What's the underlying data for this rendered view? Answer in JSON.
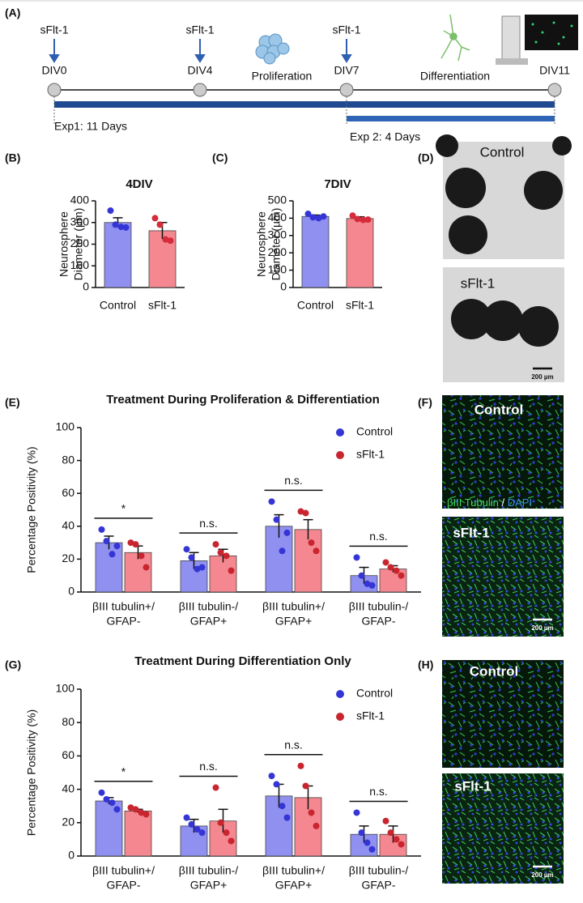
{
  "panels": [
    "(A)",
    "(B)",
    "(C)",
    "(D)",
    "(E)",
    "(F)",
    "(G)",
    "(H)"
  ],
  "timeline": {
    "treatments": [
      "sFlt-1",
      "sFlt-1",
      "sFlt-1"
    ],
    "days": [
      "DIV0",
      "DIV4",
      "DIV7",
      "DIV11"
    ],
    "phases": [
      "Proliferation",
      "Differentiation"
    ],
    "experiments": [
      "Exp1: 11 Days",
      "Exp 2: 4 Days"
    ]
  },
  "images": {
    "neurospheres": {
      "labels": [
        "Control",
        "sFlt-1"
      ],
      "scale": "200 µm"
    },
    "proliferation_differentiation": {
      "labels": [
        "Control",
        "sFlt-1"
      ],
      "stain": [
        "βIII Tubulin",
        "/",
        "DAPI"
      ],
      "scale": "200 µm"
    },
    "differentiation": {
      "labels": [
        "Control",
        "sFlt-1"
      ],
      "scale": "200 µm"
    }
  },
  "chart_data": [
    {
      "type": "bar",
      "title": "4DIV",
      "ylabel": [
        "Neurosphere",
        "Diameter (µm)"
      ],
      "categories": [
        "Control",
        "sFlt-1"
      ],
      "values": [
        300,
        262
      ],
      "errors": [
        22,
        38
      ],
      "points": [
        [
          355,
          290,
          280,
          277
        ],
        [
          320,
          290,
          222,
          216
        ]
      ],
      "colors": [
        "#8f90f0",
        "#f4878f"
      ],
      "point_colors": [
        "#3535d6",
        "#d42c3a"
      ],
      "ylim": [
        0,
        400
      ],
      "yticks": [
        0,
        100,
        200,
        300,
        400
      ]
    },
    {
      "type": "bar",
      "title": "7DIV",
      "ylabel": [
        "Neurosphere",
        "Diameter (µm)"
      ],
      "categories": [
        "Control",
        "sFlt-1"
      ],
      "values": [
        410,
        398
      ],
      "errors": [
        8,
        10
      ],
      "points": [
        [
          425,
          405,
          400,
          410
        ],
        [
          415,
          395,
          390,
          392
        ]
      ],
      "colors": [
        "#8f90f0",
        "#f4878f"
      ],
      "point_colors": [
        "#3535d6",
        "#d42c3a"
      ],
      "ylim": [
        0,
        500
      ],
      "yticks": [
        0,
        100,
        200,
        300,
        400,
        500
      ]
    },
    {
      "type": "bar",
      "title": "Treatment During Proliferation & Differentiation",
      "ylabel": [
        "Percentage Positivity (%)"
      ],
      "categories": [
        [
          "βIII tubulin+/",
          "GFAP-"
        ],
        [
          "βIII tubulin-/",
          "GFAP+"
        ],
        [
          "βIII tubulin+/",
          "GFAP+"
        ],
        [
          "βIII tubulin-/",
          "GFAP-"
        ]
      ],
      "series": [
        {
          "name": "Control",
          "color": "#8f90f0",
          "point_color": "#3535d6",
          "values": [
            30,
            19,
            40,
            10
          ],
          "errors": [
            4,
            5,
            7,
            5
          ],
          "points": [
            [
              38,
              31,
              23,
              28
            ],
            [
              26,
              21,
              14,
              15
            ],
            [
              55,
              44,
              25,
              36
            ],
            [
              21,
              10,
              5,
              4
            ]
          ]
        },
        {
          "name": "sFlt-1",
          "color": "#f4878f",
          "point_color": "#c8252f",
          "values": [
            24,
            22,
            38,
            14
          ],
          "errors": [
            4,
            4,
            6,
            2
          ],
          "points": [
            [
              30,
              29,
              22,
              15
            ],
            [
              29,
              24,
              22,
              13
            ],
            [
              49,
              48,
              30,
              25
            ],
            [
              18,
              15,
              13,
              10
            ]
          ]
        }
      ],
      "annotations": [
        "*",
        "n.s.",
        "n.s.",
        "n.s."
      ],
      "legend": "upper right",
      "ylim": [
        0,
        100
      ],
      "yticks": [
        0,
        20,
        40,
        60,
        80,
        100
      ]
    },
    {
      "type": "bar",
      "title": "Treatment During Differentiation Only",
      "ylabel": [
        "Percentage Positivity (%)"
      ],
      "categories": [
        [
          "βIII tubulin+/",
          "GFAP-"
        ],
        [
          "βIII tubulin-/",
          "GFAP+"
        ],
        [
          "βIII tubulin+/",
          "GFAP+"
        ],
        [
          "βIII tubulin-/",
          "GFAP-"
        ]
      ],
      "series": [
        {
          "name": "Control",
          "color": "#8f90f0",
          "point_color": "#3535d6",
          "values": [
            33,
            18,
            36,
            13
          ],
          "errors": [
            2,
            4,
            7,
            5
          ],
          "points": [
            [
              38,
              34,
              32,
              28
            ],
            [
              23,
              19,
              16,
              14
            ],
            [
              48,
              43,
              30,
              23
            ],
            [
              26,
              14,
              8,
              4
            ]
          ]
        },
        {
          "name": "sFlt-1",
          "color": "#f4878f",
          "point_color": "#c8252f",
          "values": [
            27,
            21,
            35,
            13
          ],
          "errors": [
            1,
            7,
            7,
            5
          ],
          "points": [
            [
              29,
              28,
              26,
              25
            ],
            [
              41,
              20,
              14,
              9
            ],
            [
              54,
              42,
              26,
              18
            ],
            [
              21,
              14,
              10,
              7
            ]
          ]
        }
      ],
      "annotations": [
        "*",
        "n.s.",
        "n.s.",
        "n.s."
      ],
      "legend": "upper right",
      "ylim": [
        0,
        100
      ],
      "yticks": [
        0,
        20,
        40,
        60,
        80,
        100
      ]
    }
  ]
}
